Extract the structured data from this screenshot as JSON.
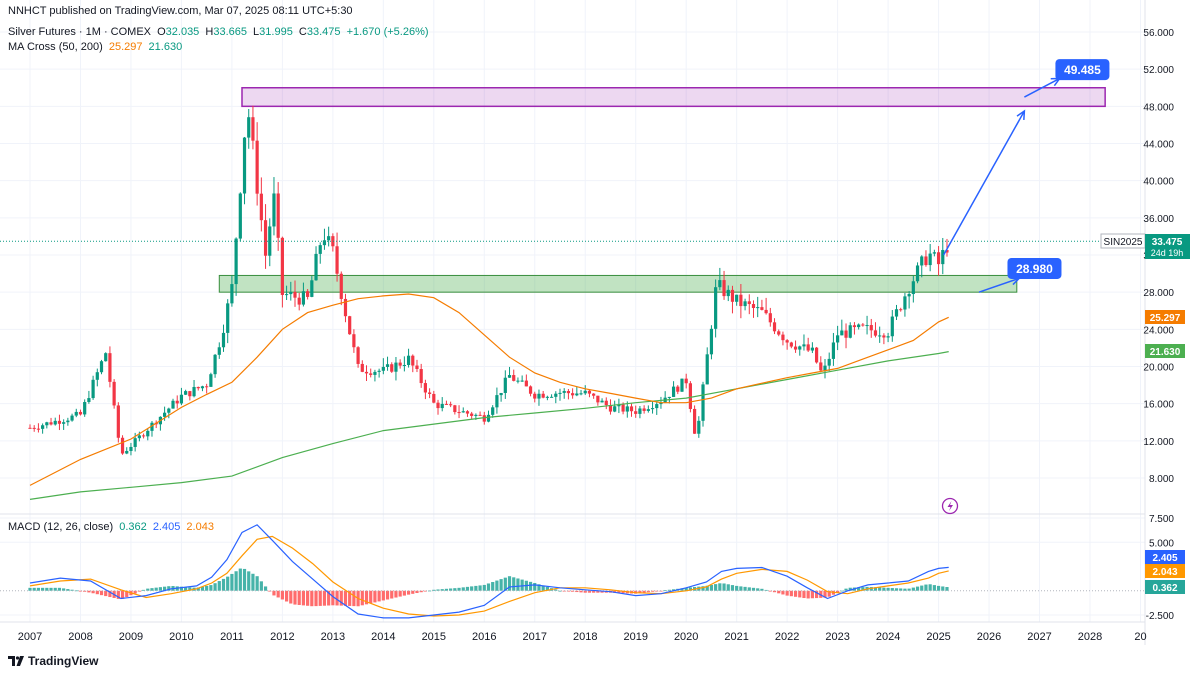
{
  "header": {
    "published": "NNHCT published on TradingView.com, Mar 07, 2025 08:11 UTC+5:30"
  },
  "legend": {
    "symbol": "Silver Futures · 1M · COMEX",
    "open_label": "O",
    "open": "32.035",
    "high_label": "H",
    "high": "33.665",
    "low_label": "L",
    "low": "31.995",
    "close_label": "C",
    "close": "33.475",
    "change": "+1.670 (+5.26%)",
    "ma_title": "MA Cross (50, 200)",
    "ma_fast": "25.297",
    "ma_slow": "21.630",
    "macd_title": "MACD (12, 26, close)",
    "macd_hist": "0.362",
    "macd_line": "2.405",
    "macd_signal": "2.043"
  },
  "brand": {
    "name": "TradingView",
    "icon": "tradingview-logo-icon"
  },
  "annotations": {
    "target_label": "49.485",
    "support_label": "28.980",
    "symbol_tag": "SIN2025",
    "price_tag": "33.475",
    "countdown": "24d 19h",
    "icon": "lightning-icon"
  },
  "colors": {
    "up": "#089981",
    "down": "#f23645",
    "ma_fast": "#f57c00",
    "ma_slow": "#4caf50",
    "macd": "#2962ff",
    "signal": "#ff9800",
    "accent": "#2962ff",
    "resistance_zone": "#9c27b0",
    "support_zone": "#4caf50",
    "event": "#9c27b0"
  },
  "chart_data": [
    {
      "type": "candlestick",
      "title": "Silver Futures · 1M · COMEX",
      "x_axis": {
        "ticks": [
          "2007",
          "2008",
          "2009",
          "2010",
          "2011",
          "2012",
          "2013",
          "2014",
          "2015",
          "2016",
          "2017",
          "2018",
          "2019",
          "2020",
          "2021",
          "2022",
          "2023",
          "2024",
          "2025",
          "2026",
          "2027",
          "2028",
          "20"
        ]
      },
      "y_axis": {
        "ticks": [
          "8.000",
          "12.000",
          "16.000",
          "20.000",
          "24.000",
          "28.000",
          "32.000",
          "36.000",
          "40.000",
          "44.000",
          "48.000",
          "52.000",
          "56.000"
        ],
        "ylim": [
          5,
          57.5
        ]
      },
      "series": [
        {
          "name": "MA 50",
          "color": "#f57c00",
          "x": [
            2007.0,
            2008.0,
            2009.0,
            2010.0,
            2010.5,
            2011.0,
            2011.5,
            2012.0,
            2012.5,
            2013.0,
            2013.5,
            2014.0,
            2014.5,
            2015.0,
            2015.5,
            2016.0,
            2016.5,
            2017.0,
            2017.5,
            2018.0,
            2018.5,
            2019.0,
            2019.5,
            2020.0,
            2020.5,
            2021.0,
            2021.5,
            2022.0,
            2022.5,
            2023.0,
            2023.5,
            2024.0,
            2024.5,
            2025.0,
            2025.2
          ],
          "y": [
            7.2,
            10.0,
            12.2,
            15.6,
            17.0,
            18.3,
            21.0,
            24.0,
            25.8,
            26.6,
            27.3,
            27.6,
            27.8,
            27.4,
            25.8,
            23.4,
            21.0,
            19.3,
            18.3,
            17.6,
            17.1,
            16.6,
            16.1,
            16.1,
            16.6,
            17.6,
            18.2,
            18.8,
            19.3,
            19.8,
            20.8,
            21.8,
            22.8,
            24.8,
            25.3
          ]
        },
        {
          "name": "MA 200",
          "color": "#4caf50",
          "x": [
            2007.0,
            2008.0,
            2009.0,
            2010.0,
            2011.0,
            2012.0,
            2013.0,
            2014.0,
            2015.0,
            2016.0,
            2017.0,
            2018.0,
            2019.0,
            2020.0,
            2021.0,
            2022.0,
            2023.0,
            2024.0,
            2025.0,
            2025.2
          ],
          "y": [
            5.7,
            6.5,
            7.0,
            7.5,
            8.2,
            10.2,
            11.7,
            13.1,
            13.8,
            14.5,
            15.0,
            15.5,
            16.1,
            16.6,
            17.6,
            18.6,
            19.6,
            20.6,
            21.4,
            21.6
          ]
        },
        {
          "name": "Price close (approx.)",
          "color": "#089981",
          "x": [
            2007.0,
            2008.0,
            2008.5,
            2008.8,
            2009.0,
            2009.5,
            2010.0,
            2010.5,
            2010.8,
            2011.0,
            2011.3,
            2011.7,
            2011.8,
            2012.0,
            2012.5,
            2012.8,
            2013.0,
            2013.3,
            2013.5,
            2014.0,
            2014.5,
            2015.0,
            2015.5,
            2016.0,
            2016.5,
            2017.0,
            2017.5,
            2018.0,
            2018.5,
            2019.0,
            2019.5,
            2020.0,
            2020.2,
            2020.6,
            2021.0,
            2021.5,
            2022.0,
            2022.5,
            2022.7,
            2023.0,
            2023.5,
            2024.0,
            2024.4,
            2024.8,
            2025.0,
            2025.2
          ],
          "y": [
            13.4,
            14.8,
            21.5,
            10.5,
            11.5,
            14.2,
            16.8,
            18.1,
            23.5,
            28.5,
            48.5,
            30.5,
            40.0,
            27.8,
            27.2,
            34.5,
            32.3,
            24.5,
            19.8,
            19.5,
            20.8,
            16.0,
            15.2,
            14.5,
            19.0,
            17.0,
            17.2,
            17.1,
            15.6,
            15.2,
            16.4,
            18.5,
            12.0,
            28.8,
            27.0,
            25.8,
            22.8,
            21.5,
            19.0,
            23.5,
            24.0,
            23.8,
            28.5,
            32.2,
            31.0,
            33.475
          ]
        }
      ],
      "annotations": {
        "resistance_zone": [
          48.0,
          50.0
        ],
        "support_zone": [
          28.0,
          29.8
        ],
        "target_value": 49.485,
        "support_value": 28.98,
        "current_price": 33.475,
        "projection_arrows": [
          {
            "from": [
              2025.1,
              32.0
            ],
            "to": [
              2026.7,
              47.5
            ]
          },
          {
            "from": [
              2026.7,
              49.0
            ],
            "to": [
              2027.4,
              51.0
            ]
          },
          {
            "from": [
              2025.8,
              28.0
            ],
            "to": [
              2026.6,
              29.5
            ]
          }
        ]
      }
    },
    {
      "type": "line",
      "title": "MACD (12, 26, close)",
      "y_axis": {
        "ticks": [
          "-2.500",
          "5.000",
          "7.500"
        ],
        "ylim": [
          -3.5,
          8.5
        ]
      },
      "series": [
        {
          "name": "MACD",
          "color": "#2962ff",
          "x": [
            2007.0,
            2007.6,
            2008.2,
            2008.8,
            2009.3,
            2009.8,
            2010.3,
            2010.6,
            2010.9,
            2011.2,
            2011.5,
            2011.8,
            2012.2,
            2012.6,
            2013.0,
            2013.5,
            2014.0,
            2014.5,
            2015.0,
            2015.5,
            2016.0,
            2016.5,
            2017.0,
            2017.5,
            2018.0,
            2018.5,
            2019.0,
            2019.5,
            2020.0,
            2020.4,
            2020.7,
            2021.0,
            2021.5,
            2022.0,
            2022.4,
            2022.8,
            2023.2,
            2023.6,
            2024.0,
            2024.4,
            2024.8,
            2025.0,
            2025.2
          ],
          "y": [
            0.8,
            1.3,
            1.0,
            -0.8,
            -0.5,
            0.2,
            0.5,
            1.4,
            3.2,
            6.0,
            6.8,
            5.2,
            3.0,
            1.2,
            -0.6,
            -2.4,
            -2.8,
            -2.8,
            -2.5,
            -2.2,
            -1.5,
            0.4,
            0.6,
            0.3,
            0.1,
            -0.1,
            -0.5,
            -0.3,
            0.3,
            0.9,
            2.0,
            2.3,
            2.4,
            1.5,
            0.3,
            -0.8,
            0.0,
            0.6,
            0.8,
            1.0,
            2.0,
            2.3,
            2.405
          ]
        },
        {
          "name": "Signal",
          "color": "#ff9800",
          "x": [
            2007.0,
            2007.6,
            2008.2,
            2008.8,
            2009.3,
            2009.8,
            2010.3,
            2010.6,
            2010.9,
            2011.2,
            2011.5,
            2011.8,
            2012.2,
            2012.6,
            2013.0,
            2013.5,
            2014.0,
            2014.5,
            2015.0,
            2015.5,
            2016.0,
            2016.5,
            2017.0,
            2017.5,
            2018.0,
            2018.5,
            2019.0,
            2019.5,
            2020.0,
            2020.4,
            2020.7,
            2021.0,
            2021.5,
            2022.0,
            2022.4,
            2022.8,
            2023.2,
            2023.6,
            2024.0,
            2024.4,
            2024.8,
            2025.0,
            2025.2
          ],
          "y": [
            0.5,
            1.0,
            1.2,
            0.1,
            -0.7,
            -0.3,
            0.2,
            0.8,
            1.8,
            3.6,
            5.3,
            5.6,
            4.4,
            2.8,
            0.9,
            -0.8,
            -1.8,
            -2.4,
            -2.6,
            -2.5,
            -2.1,
            -1.1,
            -0.2,
            0.3,
            0.3,
            0.1,
            -0.2,
            -0.3,
            0.0,
            0.4,
            1.2,
            1.8,
            2.2,
            2.0,
            1.1,
            -0.1,
            -0.3,
            0.2,
            0.5,
            0.8,
            1.3,
            1.8,
            2.043
          ]
        },
        {
          "name": "Histogram",
          "color": "#26a69a",
          "x": [
            2007.0,
            2007.6,
            2008.2,
            2008.8,
            2009.3,
            2009.8,
            2010.3,
            2010.6,
            2010.9,
            2011.2,
            2011.5,
            2011.8,
            2012.2,
            2012.6,
            2013.0,
            2013.5,
            2014.0,
            2014.5,
            2015.0,
            2015.5,
            2016.0,
            2016.5,
            2017.0,
            2017.5,
            2018.0,
            2018.5,
            2019.0,
            2019.5,
            2020.0,
            2020.4,
            2020.7,
            2021.0,
            2021.5,
            2022.0,
            2022.4,
            2022.8,
            2023.2,
            2023.6,
            2024.0,
            2024.4,
            2024.8,
            2025.0,
            2025.2
          ],
          "y": [
            0.3,
            0.3,
            -0.2,
            -0.9,
            0.2,
            0.5,
            0.3,
            0.6,
            1.4,
            2.4,
            1.5,
            -0.4,
            -1.4,
            -1.6,
            -1.5,
            -1.6,
            -1.0,
            -0.4,
            0.1,
            0.3,
            0.6,
            1.5,
            0.8,
            0.0,
            -0.2,
            -0.2,
            -0.3,
            0.0,
            0.3,
            0.5,
            0.8,
            0.5,
            0.2,
            -0.5,
            -0.8,
            -0.7,
            0.3,
            0.4,
            0.3,
            0.2,
            0.7,
            0.5,
            0.362
          ]
        }
      ]
    }
  ]
}
